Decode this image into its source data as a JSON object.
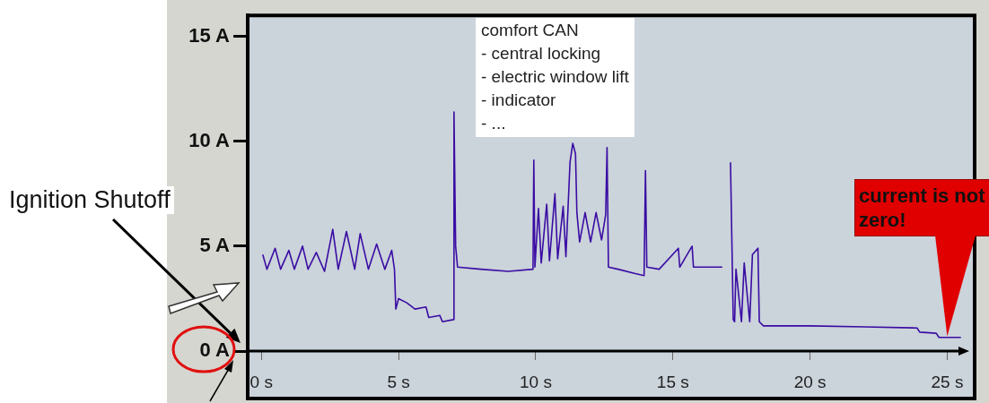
{
  "chart_data": {
    "type": "line",
    "color": "#3a0ca3",
    "marker": "none",
    "legend": false,
    "x": [
      0.05,
      0.2,
      0.5,
      0.7,
      1.0,
      1.2,
      1.5,
      1.7,
      2.0,
      2.3,
      2.6,
      2.8,
      3.1,
      3.4,
      3.6,
      3.9,
      4.2,
      4.5,
      4.75,
      4.85,
      4.9,
      5.0,
      5.3,
      5.6,
      6.0,
      6.1,
      6.5,
      6.6,
      7.0,
      7.02,
      7.08,
      7.15,
      8.0,
      9.0,
      9.9,
      9.93,
      9.97,
      10.1,
      10.2,
      10.4,
      10.5,
      10.7,
      10.8,
      11.0,
      11.1,
      11.25,
      11.35,
      11.45,
      11.5,
      11.6,
      11.8,
      12.0,
      12.2,
      12.4,
      12.55,
      12.6,
      12.65,
      13.0,
      13.6,
      13.95,
      14.0,
      14.05,
      14.5,
      15.2,
      15.25,
      15.7,
      15.75,
      16.8,
      16.9,
      17.0,
      17.1,
      17.2,
      17.25,
      17.3,
      17.5,
      17.6,
      17.8,
      17.9,
      18.1,
      18.15,
      18.3,
      20.0,
      22.0,
      23.9,
      24.0,
      24.6,
      24.7,
      25.5
    ],
    "values": [
      4.6,
      3.9,
      4.9,
      3.9,
      4.8,
      3.9,
      5.0,
      3.9,
      4.7,
      3.8,
      5.8,
      3.9,
      5.7,
      3.9,
      5.6,
      3.9,
      5.1,
      3.9,
      4.8,
      3.9,
      2.0,
      2.5,
      2.3,
      2.0,
      2.1,
      1.6,
      1.7,
      1.4,
      1.5,
      11.4,
      5.0,
      4.0,
      3.9,
      3.8,
      3.9,
      9.1,
      4.0,
      6.8,
      4.2,
      7.0,
      4.3,
      7.5,
      4.4,
      6.9,
      4.5,
      9.0,
      9.9,
      9.4,
      6.6,
      5.2,
      6.6,
      5.2,
      6.6,
      5.3,
      6.5,
      9.7,
      4.0,
      3.9,
      3.7,
      3.6,
      8.6,
      4.0,
      3.9,
      4.9,
      4.0,
      5.0,
      4.0,
      4.0,
      null,
      null,
      9.0,
      1.5,
      1.4,
      3.9,
      1.4,
      4.2,
      1.4,
      4.6,
      4.9,
      1.4,
      1.2,
      1.2,
      1.15,
      1.1,
      0.9,
      0.85,
      0.65,
      0.65
    ],
    "xlim": [
      -0.5,
      26
    ],
    "xticks": [
      {
        "value": 0,
        "label": "0 s"
      },
      {
        "value": 5,
        "label": "5 s"
      },
      {
        "value": 10,
        "label": "10 s"
      },
      {
        "value": 15,
        "label": "15 s"
      },
      {
        "value": 20,
        "label": "20 s"
      },
      {
        "value": 25,
        "label": "25 s"
      }
    ],
    "ylim": [
      0,
      16
    ],
    "yticks": [
      {
        "value": 0,
        "label": "0 A"
      },
      {
        "value": 5,
        "label": "5 A"
      },
      {
        "value": 10,
        "label": "10 A"
      },
      {
        "value": 15,
        "label": "15 A"
      }
    ],
    "annotations": [
      "comfort CAN\n- central locking\n- electric window lift\n- indicator\n- ...",
      "Ignition Shutoff",
      {
        "text": "current is not zero!",
        "x": 25,
        "y": 0.7
      }
    ]
  }
}
